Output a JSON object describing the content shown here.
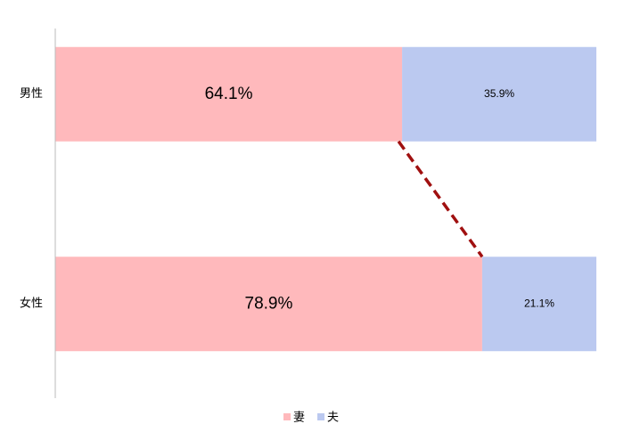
{
  "chart_data": {
    "type": "bar",
    "orientation": "horizontal",
    "stacked": true,
    "categories": [
      "男性",
      "女性"
    ],
    "series": [
      {
        "name": "妻",
        "color": "#ffb9bc",
        "values": [
          64.1,
          78.9
        ],
        "value_labels": [
          "64.1%",
          "78.9%"
        ]
      },
      {
        "name": "夫",
        "color": "#bbc9f0",
        "values": [
          35.9,
          21.1
        ],
        "value_labels": [
          "35.9%",
          "21.1%"
        ]
      }
    ],
    "xlim": [
      0,
      100
    ],
    "series_lines": true,
    "legend": "bottom"
  }
}
